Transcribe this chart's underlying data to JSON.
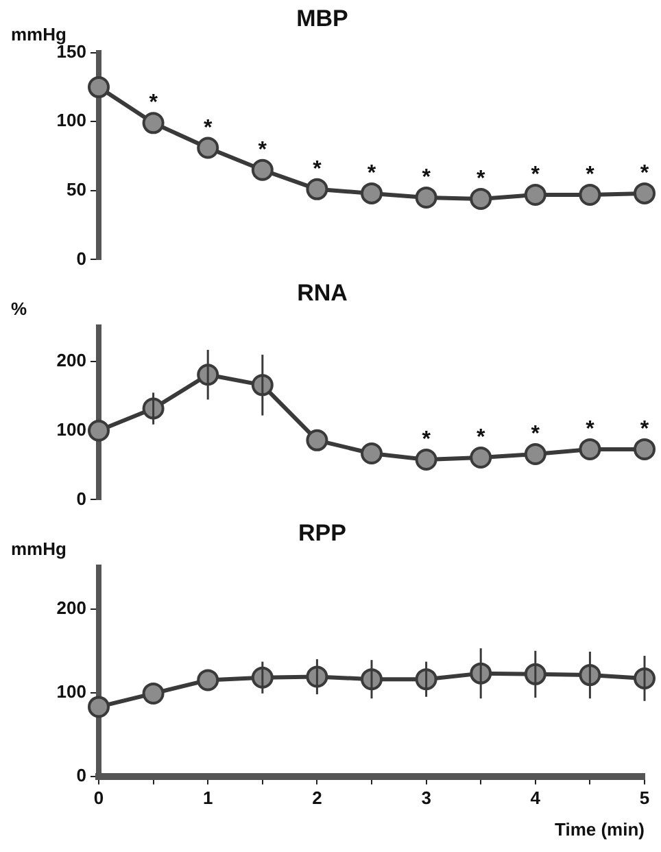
{
  "chart_data": [
    {
      "type": "line",
      "title": "MBP",
      "ylabel": "mmHg",
      "x": [
        0,
        0.5,
        1,
        1.5,
        2,
        2.5,
        3,
        3.5,
        4,
        4.5,
        5
      ],
      "xlim": [
        0,
        5
      ],
      "tick_labels": "y",
      "marker": "circle",
      "series": [
        {
          "color": "#3a3a3a",
          "values": [
            125,
            99,
            81,
            65,
            51,
            48,
            45,
            44,
            47,
            47,
            48
          ]
        }
      ],
      "ylim": [
        0,
        150
      ],
      "yticks": [
        0,
        50,
        100,
        150
      ],
      "annotations": [
        {
          "text": "*",
          "x": 0.5,
          "y": 99
        },
        {
          "text": "*",
          "x": 1,
          "y": 81
        },
        {
          "text": "*",
          "x": 1.5,
          "y": 65
        },
        {
          "text": "*",
          "x": 2,
          "y": 51
        },
        {
          "text": "*",
          "x": 2.5,
          "y": 48
        },
        {
          "text": "*",
          "x": 3,
          "y": 45
        },
        {
          "text": "*",
          "x": 3.5,
          "y": 44
        },
        {
          "text": "*",
          "x": 4,
          "y": 47
        },
        {
          "text": "*",
          "x": 4.5,
          "y": 47
        },
        {
          "text": "*",
          "x": 5,
          "y": 48
        }
      ]
    },
    {
      "type": "line",
      "title": "RNA",
      "ylabel": "%",
      "x": [
        0,
        0.5,
        1,
        1.5,
        2,
        2.5,
        3,
        3.5,
        4,
        4.5,
        5
      ],
      "xlim": [
        0,
        5
      ],
      "tick_labels": "y",
      "marker": "circle",
      "series": [
        {
          "color": "#3a3a3a",
          "values": [
            100,
            132,
            181,
            166,
            86,
            67,
            58,
            61,
            66,
            73,
            73
          ],
          "errors": [
            null,
            23,
            36,
            44,
            null,
            null,
            null,
            null,
            null,
            null,
            null
          ]
        }
      ],
      "ylim": [
        0,
        250
      ],
      "yticks": [
        0,
        100,
        200
      ],
      "annotations": [
        {
          "text": "*",
          "x": 3,
          "y": 58
        },
        {
          "text": "*",
          "x": 3.5,
          "y": 61
        },
        {
          "text": "*",
          "x": 4,
          "y": 66
        },
        {
          "text": "*",
          "x": 4.5,
          "y": 73
        },
        {
          "text": "*",
          "x": 5,
          "y": 73
        }
      ]
    },
    {
      "type": "line",
      "title": "RPP",
      "ylabel": "mmHg",
      "xlabel": "Time (min)",
      "x": [
        0,
        0.5,
        1,
        1.5,
        2,
        2.5,
        3,
        3.5,
        4,
        4.5,
        5
      ],
      "xlim": [
        0,
        5
      ],
      "marker": "circle",
      "xticks": [
        0,
        {
          "value": 0.5,
          "label": null
        },
        1,
        {
          "value": 1.5,
          "label": null
        },
        2,
        {
          "value": 2.5,
          "label": null
        },
        3,
        {
          "value": 3.5,
          "label": null
        },
        4,
        {
          "value": 4.5,
          "label": null
        },
        5
      ],
      "series": [
        {
          "color": "#3a3a3a",
          "values": [
            83,
            99,
            115,
            118,
            119,
            116,
            116,
            123,
            122,
            121,
            117
          ],
          "errors": [
            null,
            null,
            null,
            19,
            21,
            23,
            21,
            30,
            28,
            28,
            27
          ]
        }
      ],
      "ylim": [
        0,
        250
      ],
      "yticks": [
        0,
        100,
        200
      ]
    }
  ]
}
